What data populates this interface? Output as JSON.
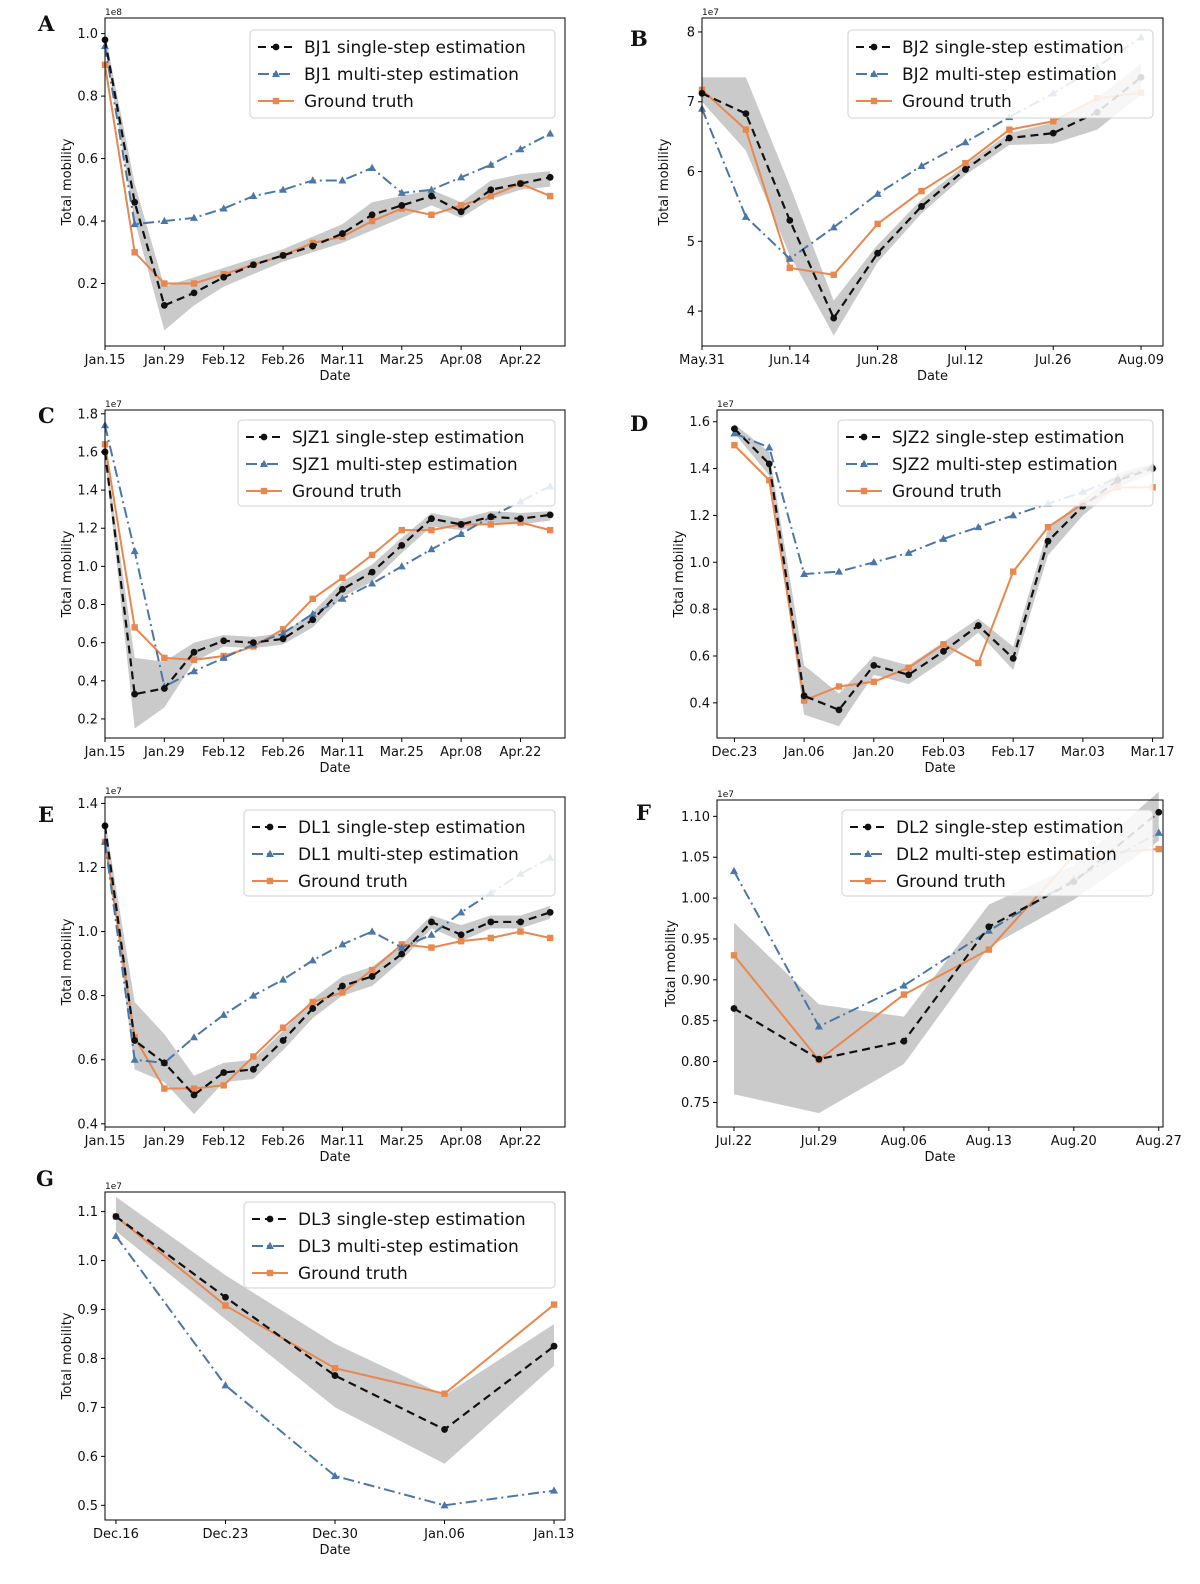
{
  "colors": {
    "single": "#111111",
    "multi": "#4a77a8",
    "truth": "#e8874e",
    "band": "#c4c4c4"
  },
  "chart_data": [
    {
      "id": "A",
      "type": "line",
      "ylabel": "Total mobility",
      "xlabel": "Date",
      "scale": "1e8",
      "ylim": [
        0.0,
        1.05
      ],
      "yticks": [
        0.2,
        0.4,
        0.6,
        0.8,
        1.0
      ],
      "ytick_labels": [
        "0.2",
        "0.4",
        "0.6",
        "0.8",
        "1.0"
      ],
      "xlim": [
        0,
        15.5
      ],
      "xticks": [
        0,
        2,
        4,
        6,
        8,
        10,
        12,
        14
      ],
      "xtick_labels": [
        "Jan.15",
        "Jan.29",
        "Feb.12",
        "Feb.26",
        "Mar.11",
        "Mar.25",
        "Apr.08",
        "Apr.22"
      ],
      "x": [
        0,
        1,
        2,
        3,
        4,
        5,
        6,
        7,
        8,
        9,
        10,
        11,
        12,
        13,
        14,
        15
      ],
      "series": [
        {
          "key": "single",
          "name": "BJ1 single-step estimation",
          "values": [
            0.98,
            0.46,
            0.13,
            0.17,
            0.22,
            0.26,
            0.29,
            0.32,
            0.36,
            0.42,
            0.45,
            0.48,
            0.43,
            0.5,
            0.52,
            0.54
          ],
          "lower": [
            0.96,
            0.4,
            0.05,
            0.13,
            0.19,
            0.23,
            0.27,
            0.3,
            0.33,
            0.37,
            0.41,
            0.45,
            0.41,
            0.47,
            0.5,
            0.51
          ],
          "upper": [
            1.0,
            0.52,
            0.19,
            0.22,
            0.25,
            0.28,
            0.31,
            0.35,
            0.39,
            0.46,
            0.48,
            0.5,
            0.46,
            0.53,
            0.55,
            0.56
          ]
        },
        {
          "key": "multi",
          "name": "BJ1 multi-step estimation",
          "values": [
            0.96,
            0.39,
            0.4,
            0.41,
            0.44,
            0.48,
            0.5,
            0.53,
            0.53,
            0.57,
            0.49,
            0.5,
            0.54,
            0.58,
            0.63,
            0.68
          ]
        },
        {
          "key": "truth",
          "name": "Ground truth",
          "values": [
            0.9,
            0.3,
            0.2,
            0.2,
            0.23,
            0.26,
            0.29,
            0.33,
            0.35,
            0.4,
            0.44,
            0.42,
            0.45,
            0.48,
            0.52,
            0.48
          ]
        }
      ]
    },
    {
      "id": "B",
      "type": "line",
      "ylabel": "Total mobility",
      "xlabel": "Date",
      "scale": "1e7",
      "ylim": [
        3.5,
        8.2
      ],
      "yticks": [
        4,
        5,
        6,
        7,
        8
      ],
      "ytick_labels": [
        "4",
        "5",
        "6",
        "7",
        "8"
      ],
      "xlim": [
        0,
        10.5
      ],
      "xticks": [
        0,
        2,
        4,
        6,
        8,
        10
      ],
      "xtick_labels": [
        "May.31",
        "Jun.14",
        "Jun.28",
        "Jul.12",
        "Jul.26",
        "Aug.09"
      ],
      "x": [
        0,
        1,
        2,
        3,
        4,
        5,
        6,
        7,
        8,
        9,
        10
      ],
      "series": [
        {
          "key": "single",
          "name": "BJ2  single-step estimation",
          "values": [
            7.12,
            6.83,
            5.3,
            3.9,
            4.83,
            5.5,
            6.03,
            6.48,
            6.55,
            6.85,
            7.35
          ],
          "lower": [
            7.0,
            6.3,
            4.8,
            3.65,
            4.7,
            5.4,
            5.95,
            6.38,
            6.4,
            6.6,
            7.1
          ],
          "upper": [
            7.35,
            7.35,
            5.8,
            4.15,
            4.95,
            5.6,
            6.1,
            6.55,
            6.7,
            7.05,
            7.55
          ]
        },
        {
          "key": "multi",
          "name": "BJ2  multi-step estimation",
          "values": [
            6.9,
            5.35,
            4.75,
            5.2,
            5.68,
            6.08,
            6.42,
            6.78,
            7.12,
            7.5,
            7.92
          ]
        },
        {
          "key": "truth",
          "name": "Ground truth",
          "values": [
            7.17,
            6.6,
            4.62,
            4.52,
            5.25,
            5.72,
            6.12,
            6.6,
            6.72,
            7.05,
            7.13
          ]
        }
      ]
    },
    {
      "id": "C",
      "type": "line",
      "ylabel": "Total mobility",
      "xlabel": "Date",
      "scale": "1e7",
      "ylim": [
        0.1,
        1.82
      ],
      "yticks": [
        0.2,
        0.4,
        0.6,
        0.8,
        1.0,
        1.2,
        1.4,
        1.6,
        1.8
      ],
      "ytick_labels": [
        "0.2",
        "0.4",
        "0.6",
        "0.8",
        "1.0",
        "1.2",
        "1.4",
        "1.6",
        "1.8"
      ],
      "xlim": [
        0,
        15.5
      ],
      "xticks": [
        0,
        2,
        4,
        6,
        8,
        10,
        12,
        14
      ],
      "xtick_labels": [
        "Jan.15",
        "Jan.29",
        "Feb.12",
        "Feb.26",
        "Mar.11",
        "Mar.25",
        "Apr.08",
        "Apr.22"
      ],
      "x": [
        0,
        1,
        2,
        3,
        4,
        5,
        6,
        7,
        8,
        9,
        10,
        11,
        12,
        13,
        14,
        15
      ],
      "series": [
        {
          "key": "single",
          "name": "SJZ1  single-step estimation",
          "values": [
            1.6,
            0.33,
            0.36,
            0.55,
            0.61,
            0.6,
            0.62,
            0.72,
            0.88,
            0.97,
            1.11,
            1.25,
            1.22,
            1.26,
            1.25,
            1.27
          ],
          "lower": [
            1.58,
            0.15,
            0.26,
            0.5,
            0.58,
            0.57,
            0.59,
            0.68,
            0.84,
            0.92,
            1.07,
            1.21,
            1.19,
            1.23,
            1.22,
            1.24
          ],
          "upper": [
            1.62,
            0.52,
            0.5,
            0.6,
            0.64,
            0.63,
            0.65,
            0.76,
            0.92,
            1.01,
            1.15,
            1.28,
            1.25,
            1.29,
            1.28,
            1.29
          ]
        },
        {
          "key": "multi",
          "name": "SJZ1 multi-step estimation",
          "values": [
            1.74,
            1.08,
            0.37,
            0.45,
            0.52,
            0.59,
            0.65,
            0.75,
            0.83,
            0.91,
            1.0,
            1.09,
            1.17,
            1.26,
            1.34,
            1.42
          ]
        },
        {
          "key": "truth",
          "name": "Ground truth",
          "values": [
            1.64,
            0.68,
            0.52,
            0.51,
            0.53,
            0.58,
            0.67,
            0.83,
            0.94,
            1.06,
            1.19,
            1.19,
            1.22,
            1.22,
            1.23,
            1.19
          ]
        }
      ]
    },
    {
      "id": "D",
      "type": "line",
      "ylabel": "Total mobility",
      "xlabel": "Date",
      "scale": "1e7",
      "ylim": [
        0.25,
        1.65
      ],
      "yticks": [
        0.4,
        0.6,
        0.8,
        1.0,
        1.2,
        1.4,
        1.6
      ],
      "ytick_labels": [
        "0.4",
        "0.6",
        "0.8",
        "1.0",
        "1.2",
        "1.4",
        "1.6"
      ],
      "xlim": [
        -0.5,
        12.3
      ],
      "xticks": [
        0,
        2,
        4,
        6,
        8,
        10,
        12
      ],
      "xtick_labels": [
        "Dec.23",
        "Jan.06",
        "Jan.20",
        "Feb.03",
        "Feb.17",
        "Mar.03",
        "Mar.17"
      ],
      "x": [
        0,
        1,
        2,
        3,
        4,
        5,
        6,
        7,
        8,
        9,
        10,
        11,
        12
      ],
      "series": [
        {
          "key": "single",
          "name": "SJZ2  single-step estimation",
          "values": [
            1.57,
            1.42,
            0.43,
            0.37,
            0.56,
            0.52,
            0.62,
            0.73,
            0.59,
            1.09,
            1.24,
            1.35,
            1.4
          ],
          "lower": [
            1.55,
            1.37,
            0.35,
            0.3,
            0.52,
            0.48,
            0.58,
            0.7,
            0.54,
            1.03,
            1.2,
            1.32,
            1.38
          ],
          "upper": [
            1.59,
            1.47,
            0.56,
            0.44,
            0.6,
            0.56,
            0.66,
            0.76,
            0.64,
            1.14,
            1.27,
            1.38,
            1.42
          ]
        },
        {
          "key": "multi",
          "name": "SJZ2 multi-step estimation",
          "values": [
            1.55,
            1.49,
            0.95,
            0.96,
            1.0,
            1.04,
            1.1,
            1.15,
            1.2,
            1.25,
            1.3,
            1.36,
            1.41
          ]
        },
        {
          "key": "truth",
          "name": "Ground truth",
          "values": [
            1.5,
            1.35,
            0.41,
            0.47,
            0.49,
            0.55,
            0.65,
            0.57,
            0.96,
            1.15,
            1.25,
            1.32,
            1.32
          ]
        }
      ]
    },
    {
      "id": "E",
      "type": "line",
      "ylabel": "Total mobility",
      "xlabel": "Date",
      "scale": "1e7",
      "ylim": [
        0.39,
        1.42
      ],
      "yticks": [
        0.4,
        0.6,
        0.8,
        1.0,
        1.2,
        1.4
      ],
      "ytick_labels": [
        "0.4",
        "0.6",
        "0.8",
        "1.0",
        "1.2",
        "1.4"
      ],
      "xlim": [
        0,
        15.5
      ],
      "xticks": [
        0,
        2,
        4,
        6,
        8,
        10,
        12,
        14
      ],
      "xtick_labels": [
        "Jan.15",
        "Jan.29",
        "Feb.12",
        "Feb.26",
        "Mar.11",
        "Mar.25",
        "Apr.08",
        "Apr.22"
      ],
      "x": [
        0,
        1,
        2,
        3,
        4,
        5,
        6,
        7,
        8,
        9,
        10,
        11,
        12,
        13,
        14,
        15
      ],
      "series": [
        {
          "key": "single",
          "name": "DL1  single-step estimation",
          "values": [
            1.33,
            0.66,
            0.59,
            0.49,
            0.56,
            0.57,
            0.66,
            0.76,
            0.83,
            0.86,
            0.93,
            1.03,
            0.99,
            1.03,
            1.03,
            1.06
          ],
          "lower": [
            1.31,
            0.57,
            0.53,
            0.43,
            0.53,
            0.54,
            0.63,
            0.73,
            0.8,
            0.83,
            0.91,
            1.01,
            0.97,
            1.01,
            1.01,
            1.04
          ],
          "upper": [
            1.35,
            0.78,
            0.68,
            0.55,
            0.59,
            0.6,
            0.69,
            0.79,
            0.86,
            0.89,
            0.96,
            1.05,
            1.02,
            1.05,
            1.05,
            1.08
          ]
        },
        {
          "key": "multi",
          "name": "DL1  multi-step estimation",
          "values": [
            1.28,
            0.6,
            0.59,
            0.67,
            0.74,
            0.8,
            0.85,
            0.91,
            0.96,
            1.0,
            0.95,
            0.99,
            1.06,
            1.12,
            1.18,
            1.23
          ]
        },
        {
          "key": "truth",
          "name": "Ground truth",
          "values": [
            1.28,
            0.67,
            0.51,
            0.51,
            0.52,
            0.61,
            0.7,
            0.78,
            0.81,
            0.88,
            0.96,
            0.95,
            0.97,
            0.98,
            1.0,
            0.98
          ]
        }
      ]
    },
    {
      "id": "F",
      "type": "line",
      "ylabel": "Total mobility",
      "xlabel": "Date",
      "scale": "1e7",
      "ylim": [
        0.72,
        1.12
      ],
      "yticks": [
        0.75,
        0.8,
        0.85,
        0.9,
        0.95,
        1.0,
        1.05,
        1.1
      ],
      "ytick_labels": [
        "0.75",
        "0.80",
        "0.85",
        "0.90",
        "0.95",
        "1.00",
        "1.05",
        "1.10"
      ],
      "xlim": [
        -0.2,
        5.05
      ],
      "xticks": [
        0,
        1,
        2,
        3,
        4,
        5
      ],
      "xtick_labels": [
        "Jul.22",
        "Jul.29",
        "Aug.06",
        "Aug.13",
        "Aug.20",
        "Aug.27"
      ],
      "x": [
        0,
        1,
        2,
        3,
        4,
        5
      ],
      "series": [
        {
          "key": "single",
          "name": "DL2  single-step estimation",
          "values": [
            0.865,
            0.803,
            0.825,
            0.965,
            1.02,
            1.105
          ],
          "lower": [
            0.76,
            0.737,
            0.797,
            0.94,
            0.998,
            1.07
          ],
          "upper": [
            0.97,
            0.87,
            0.855,
            0.992,
            1.04,
            1.13
          ]
        },
        {
          "key": "multi",
          "name": "DL2  multi-step estimation",
          "values": [
            1.033,
            0.843,
            0.893,
            0.96,
            1.023,
            1.08
          ]
        },
        {
          "key": "truth",
          "name": "Ground truth",
          "values": [
            0.93,
            0.802,
            0.882,
            0.937,
            1.052,
            1.06
          ]
        }
      ]
    },
    {
      "id": "G",
      "type": "line",
      "ylabel": "Total mobility",
      "xlabel": "Date",
      "scale": "1e7",
      "ylim": [
        0.47,
        1.14
      ],
      "yticks": [
        0.5,
        0.6,
        0.7,
        0.8,
        0.9,
        1.0,
        1.1
      ],
      "ytick_labels": [
        "0.5",
        "0.6",
        "0.7",
        "0.8",
        "0.9",
        "1.0",
        "1.1"
      ],
      "xlim": [
        -0.1,
        4.1
      ],
      "xticks": [
        0,
        1,
        2,
        3,
        4
      ],
      "xtick_labels": [
        "Dec.16",
        "Dec.23",
        "Dec.30",
        "Jan.06",
        "Jan.13"
      ],
      "x": [
        0,
        1,
        2,
        3,
        4
      ],
      "series": [
        {
          "key": "single",
          "name": "DL3  single-step estimation",
          "values": [
            1.09,
            0.925,
            0.765,
            0.655,
            0.825
          ],
          "lower": [
            1.06,
            0.88,
            0.7,
            0.585,
            0.785
          ],
          "upper": [
            1.13,
            0.97,
            0.83,
            0.725,
            0.87
          ]
        },
        {
          "key": "multi",
          "name": "DL3  multi-step estimation",
          "values": [
            1.05,
            0.745,
            0.56,
            0.5,
            0.53
          ]
        },
        {
          "key": "truth",
          "name": "Ground truth",
          "values": [
            1.09,
            0.908,
            0.78,
            0.728,
            0.91
          ]
        }
      ]
    }
  ]
}
